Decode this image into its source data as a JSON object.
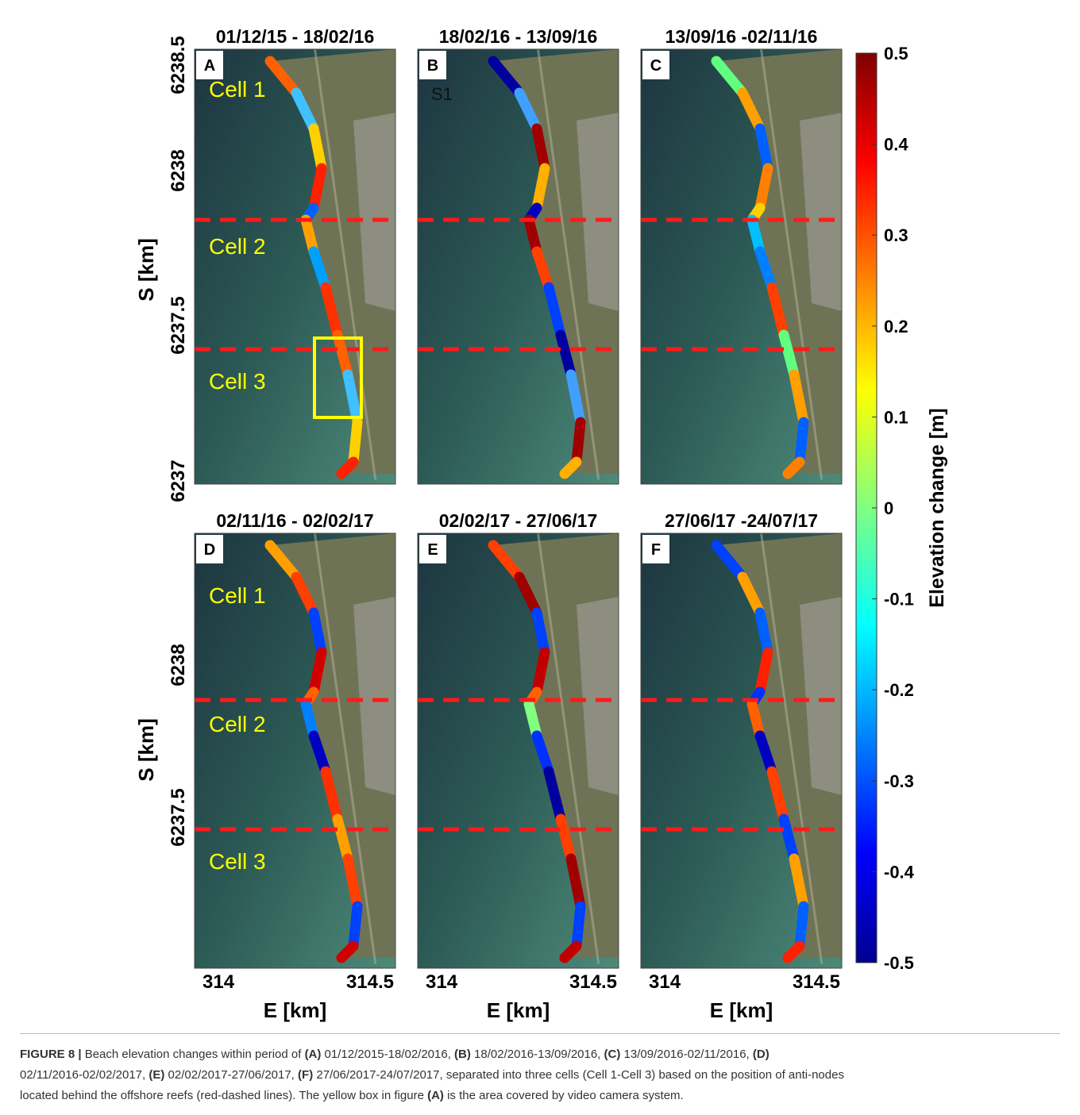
{
  "panels": [
    {
      "letter": "A",
      "title": "01/12/15 - 18/02/16"
    },
    {
      "letter": "B",
      "title": "18/02/16 - 13/09/16"
    },
    {
      "letter": "C",
      "title": "13/09/16 -02/11/16"
    },
    {
      "letter": "D",
      "title": "02/11/16 - 02/02/17"
    },
    {
      "letter": "E",
      "title": "02/02/17 - 27/06/17"
    },
    {
      "letter": "F",
      "title": "27/06/17 -24/07/17"
    }
  ],
  "cell_labels": [
    "Cell 1",
    "Cell 2",
    "Cell 3"
  ],
  "site_label": "S1",
  "y_axis_label": "S [km]",
  "y_ticks_top": [
    "6238.5",
    "6238",
    "6237.5",
    "6237"
  ],
  "y_ticks_bottom": [
    "6238",
    "6237.5"
  ],
  "x_axis_label": "E [km]",
  "x_ticks": [
    "314",
    "314.5"
  ],
  "colorbar": {
    "label": "Elevation change [m]",
    "ticks": [
      "0.5",
      "0.4",
      "0.3",
      "0.2",
      "0.1",
      "0",
      "-0.1",
      "-0.2",
      "-0.3",
      "-0.4",
      "-0.5"
    ]
  },
  "caption": {
    "lines": [
      [
        {
          "text": "FIGURE 8 |",
          "bold": true
        },
        {
          "text": " Beach elevation changes within period of ",
          "bold": false
        },
        {
          "text": "(A)",
          "bold": true
        },
        {
          "text": " 01/12/2015-18/02/2016, ",
          "bold": false
        },
        {
          "text": "(B)",
          "bold": true
        },
        {
          "text": " 18/02/2016-13/09/2016, ",
          "bold": false
        },
        {
          "text": "(C)",
          "bold": true
        },
        {
          "text": " 13/09/2016-02/11/2016, ",
          "bold": false
        },
        {
          "text": "(D)",
          "bold": true
        }
      ],
      [
        {
          "text": "02/11/2016-02/02/2017, ",
          "bold": false
        },
        {
          "text": "(E)",
          "bold": true
        },
        {
          "text": " 02/02/2017-27/06/2017, ",
          "bold": false
        },
        {
          "text": "(F)",
          "bold": true
        },
        {
          "text": " 27/06/2017-24/07/2017, separated into three cells (Cell 1-Cell 3) based on the position of anti-nodes",
          "bold": false
        }
      ],
      [
        {
          "text": "located behind the offshore reefs (red-dashed lines). The yellow box in figure ",
          "bold": false
        },
        {
          "text": "(A)",
          "bold": true
        },
        {
          "text": " is the area covered by video camera system.",
          "bold": false
        }
      ]
    ]
  }
}
